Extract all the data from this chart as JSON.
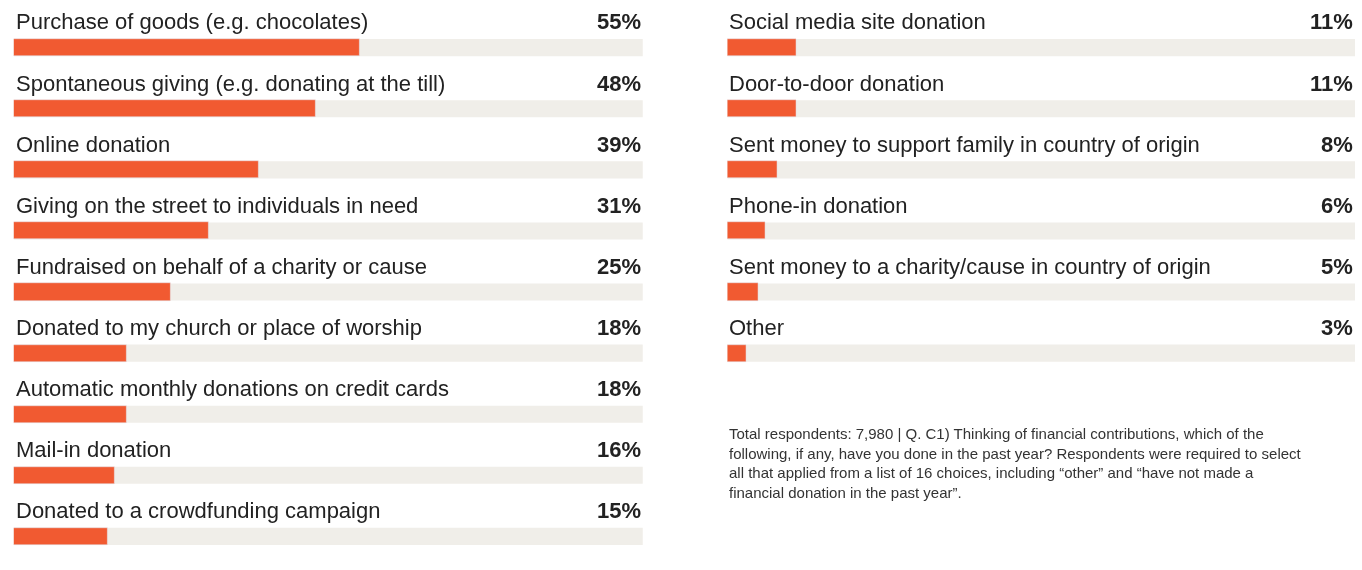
{
  "chart_data": [
    {
      "type": "bar",
      "orientation": "horizontal",
      "categories": [
        "Purchase of goods (e.g. chocolates)",
        "Spontaneous giving (e.g. donating at the till)",
        "Online donation",
        "Giving on the street to individuals in need",
        "Fundraised on behalf of a charity or cause",
        "Donated to my church or place of worship",
        "Automatic monthly donations on credit cards",
        "Mail-in donation",
        "Donated to a crowdfunding campaign"
      ],
      "values": [
        55,
        48,
        39,
        31,
        25,
        18,
        18,
        16,
        15
      ],
      "value_labels": [
        "55%",
        "48%",
        "39%",
        "31%",
        "25%",
        "18%",
        "18%",
        "16%",
        "15%"
      ],
      "color": "#f15a31",
      "xlim": [
        0,
        100
      ],
      "tick_labels": false
    },
    {
      "type": "bar",
      "orientation": "horizontal",
      "categories": [
        "Social media site donation",
        "Door-to-door donation",
        "Sent money to support family in country of origin",
        "Phone-in donation",
        "Sent money to a charity/cause in country of origin",
        "Other"
      ],
      "values": [
        11,
        11,
        8,
        6,
        5,
        3
      ],
      "value_labels": [
        "11%",
        "11%",
        "8%",
        "6%",
        "5%",
        "3%"
      ],
      "color": "#f15a31",
      "xlim": [
        0,
        100
      ],
      "tick_labels": false,
      "annotations": [
        "Total respondents: 7,980 | Q. C1) Thinking of financial contributions, which of the following, if any, have you done in the past year? Respondents were required to select all that applied from a list of 16 choices, including “other” and “have not made a financial donation in the past year”."
      ]
    }
  ]
}
